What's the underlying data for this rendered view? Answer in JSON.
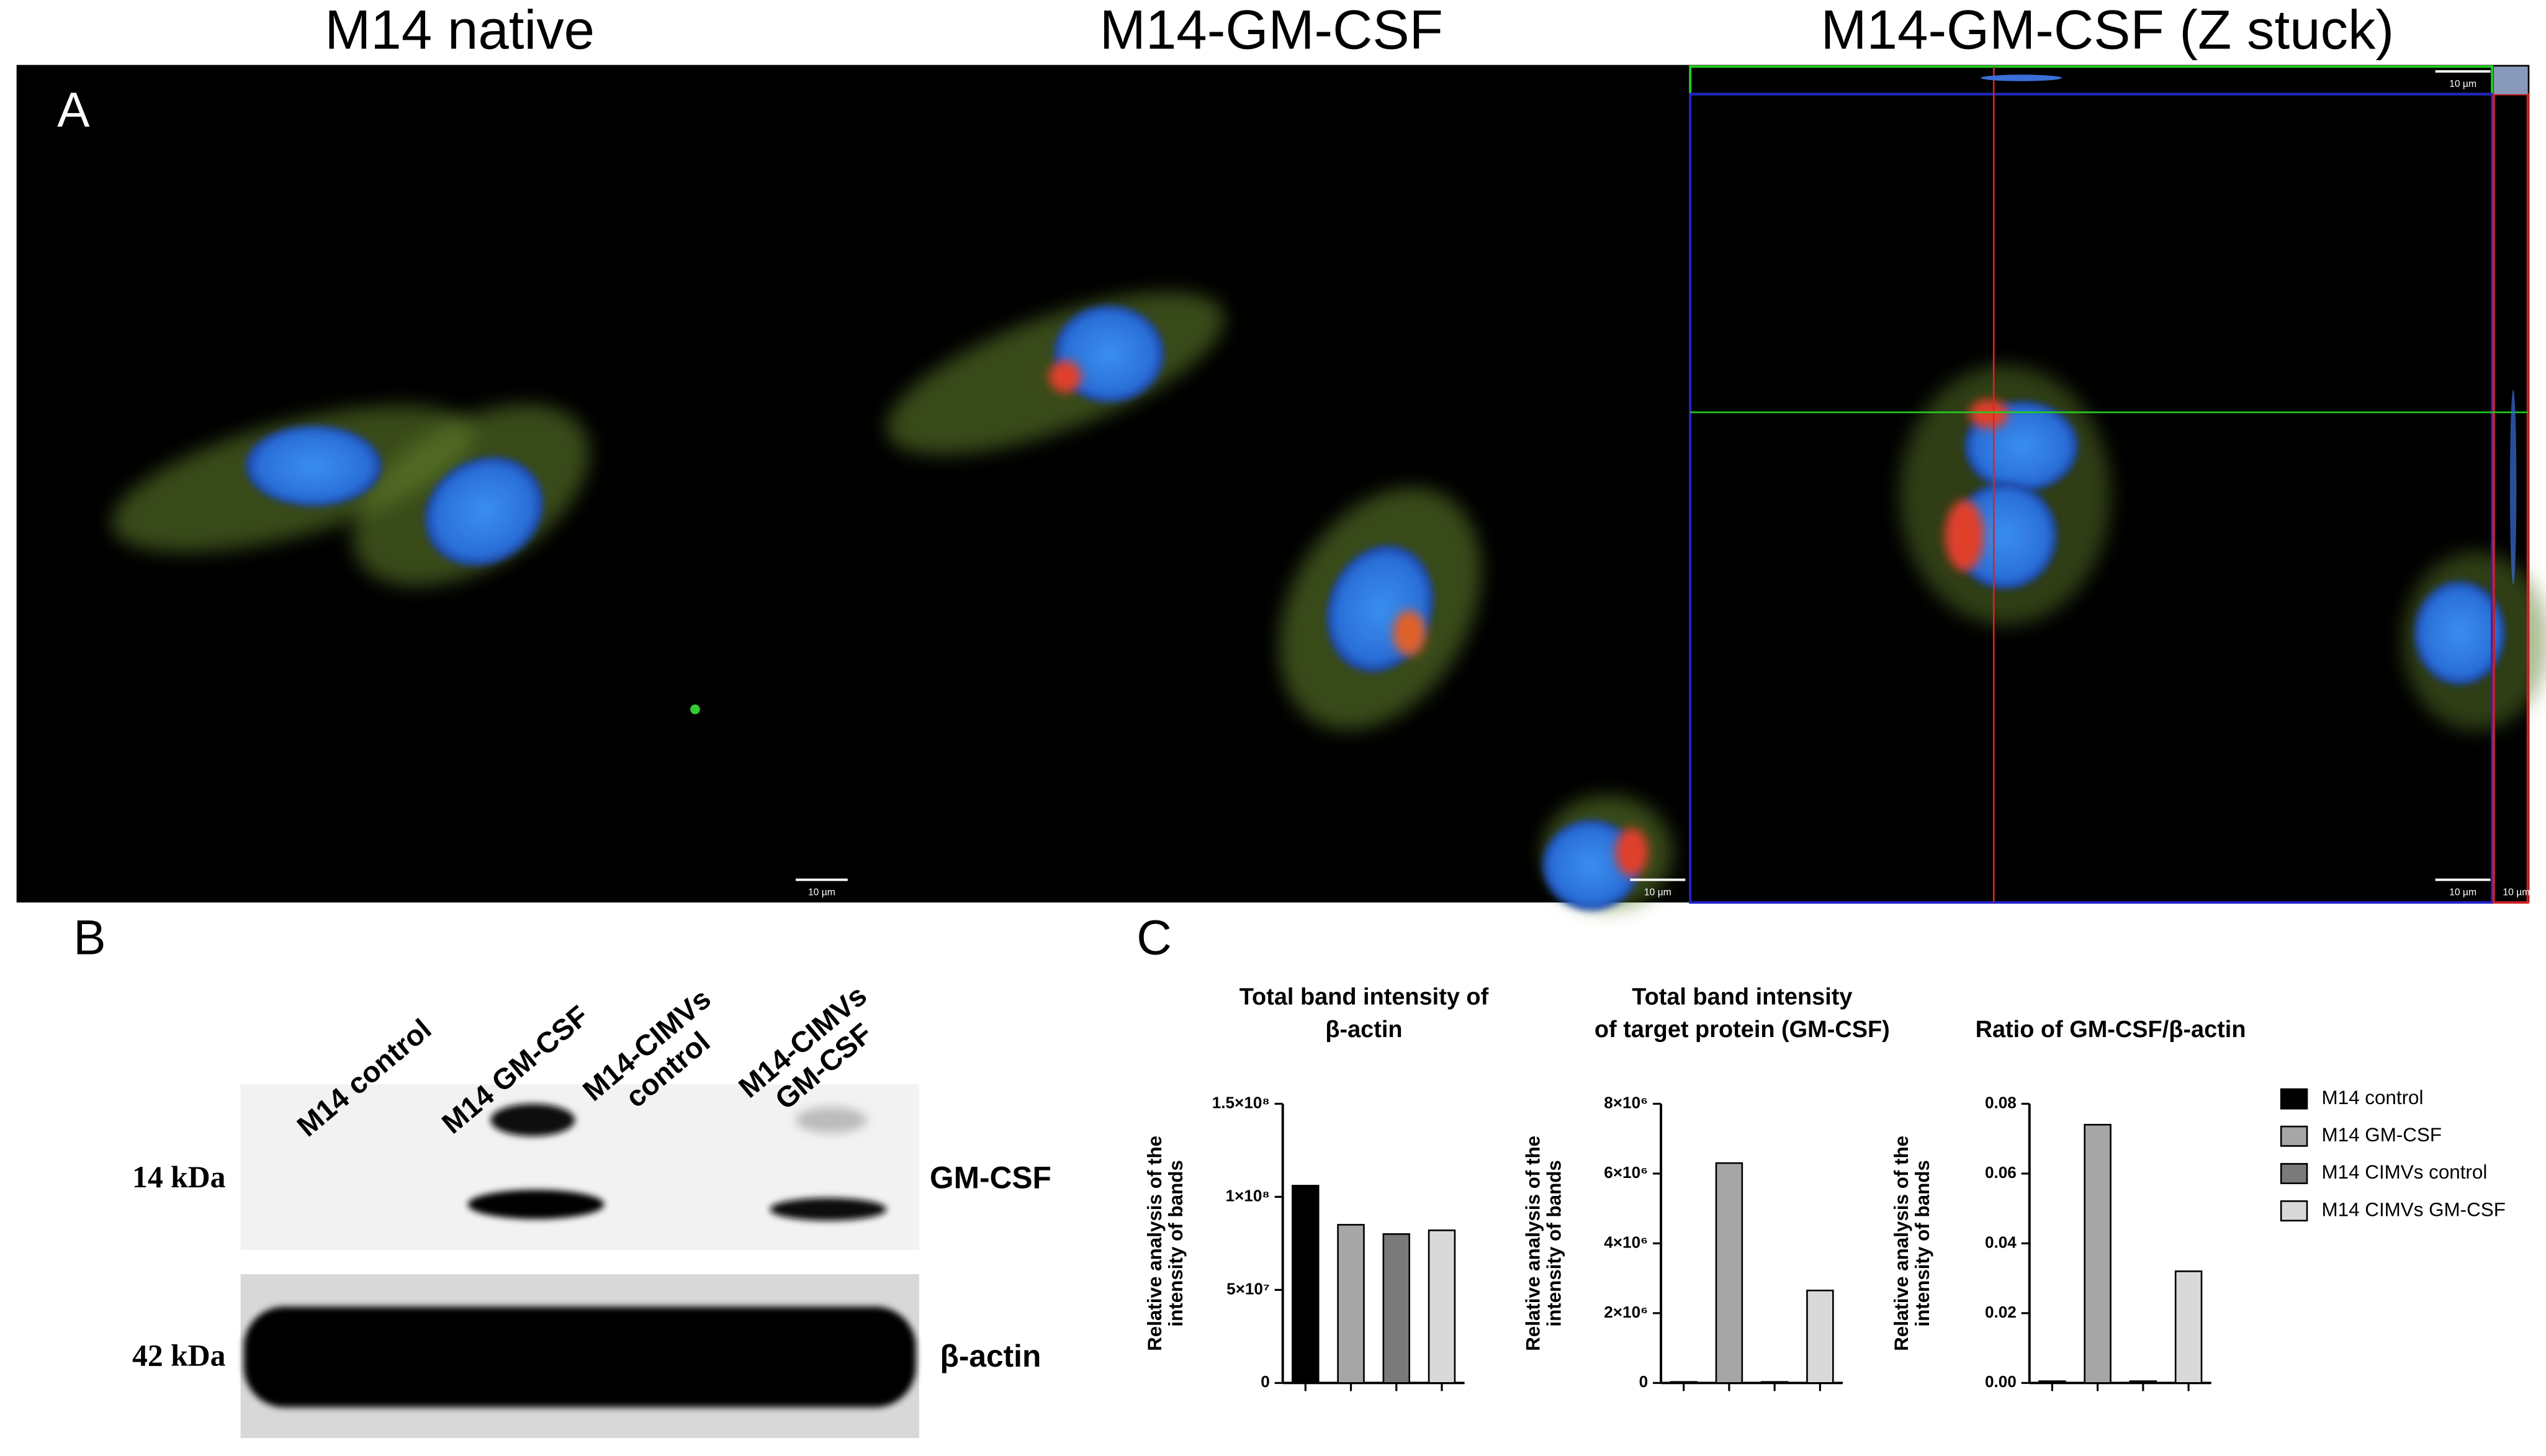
{
  "figure": {
    "panel_a": {
      "letter": "A",
      "titles": [
        "M14 native",
        "M14-GM-CSF",
        "M14-GM-CSF (Z stuck)"
      ],
      "scale_bar": "10 µm"
    },
    "panel_b": {
      "letter": "B",
      "lanes": [
        [
          "M14 control"
        ],
        [
          "M14 GM-CSF"
        ],
        [
          "M14-CIMVs",
          "control"
        ],
        [
          "M14-CIMVs",
          "GM-CSF"
        ]
      ],
      "markers": [
        "14 kDa",
        "42 kDa"
      ],
      "proteins": [
        "GM-CSF",
        "β-actin"
      ]
    },
    "panel_c": {
      "letter": "C"
    }
  },
  "legend": [
    {
      "name": "M14 control",
      "color": "#000000"
    },
    {
      "name": "M14 GM-CSF",
      "color": "#a6a6a6"
    },
    {
      "name": "M14 CIMVs control",
      "color": "#7a7a7a"
    },
    {
      "name": "M14 CIMVs GM-CSF",
      "color": "#d9d9d9"
    }
  ],
  "chart_data": [
    {
      "type": "bar",
      "title": [
        "Total band intensity of",
        "β-actin"
      ],
      "y_label": [
        "Relative analysis of the",
        "intensity of bands"
      ],
      "categories": [
        null,
        null,
        null,
        null
      ],
      "values": [
        106000000,
        85000000,
        80000000,
        82000000
      ],
      "colors": [
        "#000000",
        "#a6a6a6",
        "#7a7a7a",
        "#d9d9d9"
      ],
      "ylim": [
        0,
        150000000
      ],
      "yticks": [
        0,
        {
          "value": 50000000,
          "label": "5×10⁷"
        },
        {
          "value": 100000000,
          "label": "1×10⁸"
        },
        {
          "value": 150000000,
          "label": "1.5×10⁸"
        }
      ]
    },
    {
      "type": "bar",
      "title": [
        "Total band intensity",
        "of target protein (GM-CSF)"
      ],
      "y_label": [
        "Relative analysis of the",
        "intensity of bands"
      ],
      "categories": [
        null,
        null,
        null,
        null
      ],
      "values": [
        30000,
        6300000,
        30000,
        2650000
      ],
      "colors": [
        "#000000",
        "#a6a6a6",
        "#7a7a7a",
        "#d9d9d9"
      ],
      "ylim": [
        0,
        8000000
      ],
      "yticks": [
        0,
        {
          "value": 2000000,
          "label": "2×10⁶"
        },
        {
          "value": 4000000,
          "label": "4×10⁶"
        },
        {
          "value": 6000000,
          "label": "6×10⁶"
        },
        {
          "value": 8000000,
          "label": "8×10⁶"
        }
      ]
    },
    {
      "type": "bar",
      "title": [
        "Ratio of GM-CSF/β-actin"
      ],
      "y_label": [
        "Relative analysis of the",
        "intensity of bands"
      ],
      "categories": [
        null,
        null,
        null,
        null
      ],
      "values": [
        0.0005,
        0.074,
        0.0005,
        0.032
      ],
      "colors": [
        "#000000",
        "#a6a6a6",
        "#7a7a7a",
        "#d9d9d9"
      ],
      "ylim": [
        0,
        0.08
      ],
      "yticks": [
        {
          "value": 0,
          "label": "0.00"
        },
        {
          "value": 0.02,
          "label": "0.02"
        },
        {
          "value": 0.04,
          "label": "0.04"
        },
        {
          "value": 0.06,
          "label": "0.06"
        },
        {
          "value": 0.08,
          "label": "0.08"
        }
      ]
    }
  ]
}
